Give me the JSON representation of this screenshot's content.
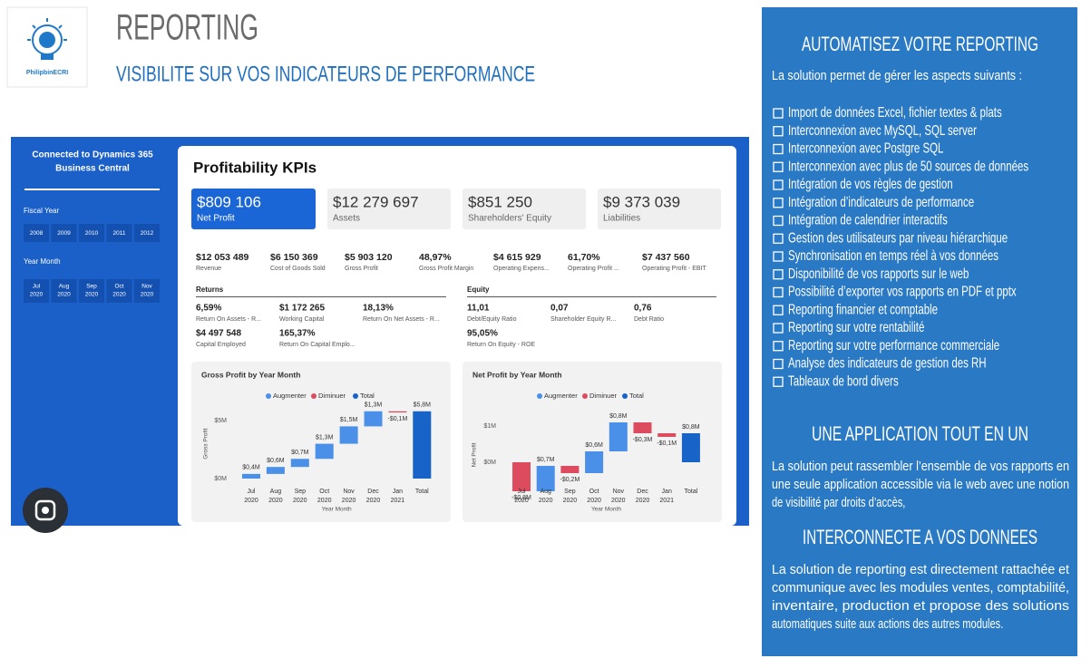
{
  "header": {
    "logo_text": "PhilipbinECRI",
    "title": "REPORTING",
    "subtitle": "VISIBILITE SUR VOS INDICATEURS DE PERFORMANCE"
  },
  "dashboard": {
    "sidebar": {
      "title": [
        "Connected to Dynamics 365",
        "Business Central"
      ],
      "fiscal_year_label": "Fiscal Year",
      "years": [
        "2008",
        "2009",
        "2010",
        "2011",
        "2012"
      ],
      "year_month_label": "Year Month",
      "months": [
        [
          "Jul",
          "2020"
        ],
        [
          "Aug",
          "2020"
        ],
        [
          "Sep",
          "2020"
        ],
        [
          "Oct",
          "2020"
        ],
        [
          "Nov",
          "2020"
        ]
      ]
    },
    "title": "Profitability KPIs",
    "cards": [
      {
        "value": "$809 106",
        "label": "Net Profit"
      },
      {
        "value": "$12 279 697",
        "label": "Assets"
      },
      {
        "value": "$851 250",
        "label": "Shareholders' Equity"
      },
      {
        "value": "$9 373 039",
        "label": "Liabilities"
      }
    ],
    "kpis": [
      {
        "value": "$12 053 489",
        "label": "Revenue"
      },
      {
        "value": "$6 150 369",
        "label": "Cost of Goods Sold"
      },
      {
        "value": "$5 903 120",
        "label": "Gross Profit"
      },
      {
        "value": "48,97%",
        "label": "Gross Profit Margin"
      },
      {
        "value": "$4 615 929",
        "label": "Operating Expens..."
      },
      {
        "value": "61,70%",
        "label": "Operating Profit ..."
      },
      {
        "value": "$7 437 560",
        "label": "Operating Profit - EBIT"
      }
    ],
    "returns": {
      "title": "Returns",
      "items": [
        {
          "value": "6,59%",
          "label": "Return On Assets - R..."
        },
        {
          "value": "$1 172 265",
          "label": "Working Capital"
        },
        {
          "value": "18,13%",
          "label": "Return On Net Assets - R..."
        },
        {
          "value": "$4 497 548",
          "label": "Capital Employed"
        },
        {
          "value": "165,37%",
          "label": "Return On Capital Emplo..."
        }
      ]
    },
    "equity": {
      "title": "Equity",
      "items": [
        {
          "value": "11,01",
          "label": "Debt/Equity Ratio"
        },
        {
          "value": "0,07",
          "label": "Shareholder Equity R..."
        },
        {
          "value": "0,76",
          "label": "Debt Ratio"
        },
        {
          "value": "95,05%",
          "label": "Return On Equity - ROE"
        }
      ]
    },
    "charts": [
      {
        "type": "waterfall",
        "title": "Gross Profit by Year Month",
        "legend": [
          {
            "name": "Augmenter",
            "color": "#4a90e8"
          },
          {
            "name": "Diminuer",
            "color": "#dd4b5f"
          },
          {
            "name": "Total",
            "color": "#1763c7"
          }
        ],
        "y_axis_label": "Gross Profit",
        "x_axis_label": "Year Month",
        "categories": [
          [
            "Jul",
            "2020"
          ],
          [
            "Aug",
            "2020"
          ],
          [
            "Sep",
            "2020"
          ],
          [
            "Oct",
            "2020"
          ],
          [
            "Nov",
            "2020"
          ],
          [
            "Dec",
            "2020"
          ],
          [
            "Jan",
            "2021"
          ],
          [
            "Total"
          ]
        ],
        "values": [
          0.4,
          0.6,
          0.7,
          1.3,
          1.5,
          1.3,
          -0.1,
          5.8
        ],
        "value_labels": [
          "$0,4M",
          "$0,6M",
          "$0,7M",
          "$1,3M",
          "$1,5M",
          "$1,3M",
          "-$0,1M",
          "$5,8M"
        ],
        "ylim": [
          0,
          6
        ],
        "yticks": [
          {
            "value": 0,
            "label": "$0M"
          },
          {
            "value": 5,
            "label": "$5M"
          }
        ]
      },
      {
        "type": "waterfall",
        "title": "Net Profit by Year Month",
        "legend": [
          {
            "name": "Augmenter",
            "color": "#4a90e8"
          },
          {
            "name": "Diminuer",
            "color": "#dd4b5f"
          },
          {
            "name": "Total",
            "color": "#1763c7"
          }
        ],
        "y_axis_label": "Net Profit",
        "x_axis_label": "Year Month",
        "categories": [
          [
            "Jul",
            "2020"
          ],
          [
            "Aug",
            "2020"
          ],
          [
            "Sep",
            "2020"
          ],
          [
            "Oct",
            "2020"
          ],
          [
            "Nov",
            "2020"
          ],
          [
            "Dec",
            "2020"
          ],
          [
            "Jan",
            "2021"
          ],
          [
            "Total"
          ]
        ],
        "values": [
          -0.8,
          0.7,
          -0.2,
          0.6,
          0.8,
          -0.3,
          -0.1,
          0.8
        ],
        "value_labels": [
          "-$0,8M",
          "$0,7M",
          "-$0,2M",
          "$0,6M",
          "$0,8M",
          "-$0,3M",
          "-$0,1M",
          "$0,8M"
        ],
        "ylim": [
          -0.8,
          1.2
        ],
        "yticks": [
          {
            "value": 0,
            "label": "$0M"
          },
          {
            "value": 1,
            "label": "$1M"
          }
        ]
      }
    ]
  },
  "panel": {
    "heading1": "AUTOMATISEZ VOTRE REPORTING",
    "intro": "La solution permet de gérer les aspects suivants :",
    "items": [
      "Import de données Excel, fichier textes & plats",
      "Interconnexion avec MySQL, SQL server",
      "Interconnexion avec Postgre SQL",
      "Interconnexion avec plus de 50 sources de données",
      "Intégration de vos règles de gestion",
      "Intégration d’indicateurs de performance",
      "Intégration de calendrier interactifs",
      "Gestion des utilisateurs par niveau hiérarchique",
      "Synchronisation en temps réel à vos données",
      "Disponibilité de vos rapports sur le web",
      "Possibilité d’exporter vos rapports en PDF et pptx",
      "Reporting financier et comptable",
      "Reporting sur votre rentabilité",
      "Reporting sur votre performance commerciale",
      "Analyse des indicateurs de gestion des RH",
      "Tableaux de bord divers"
    ],
    "heading2": "UNE APPLICATION TOUT EN UN",
    "paragraph2": [
      "La solution peut rassembler l’ensemble de vos rapports en",
      "une seule application accessible via le web avec une notion",
      "de visibilité par droits d’accès,"
    ],
    "heading3": "INTERCONNECTE A VOS DONNEES",
    "paragraph3": [
      "La solution de reporting est directement rattachée et",
      "communique avec les modules ventes, comptabilité,",
      "inventaire, production et propose des solutions",
      "automatiques suite aux actions des autres modules."
    ]
  }
}
